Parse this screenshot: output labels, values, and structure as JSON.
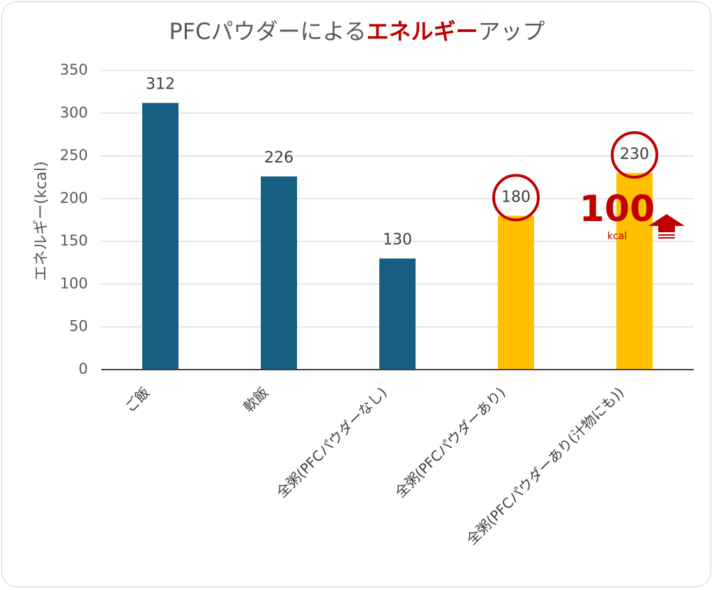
{
  "chart_data": {
    "type": "bar",
    "title_parts": [
      {
        "text": "PFCパウダーによる",
        "highlight": false
      },
      {
        "text": "エネルギー",
        "highlight": true
      },
      {
        "text": "アップ",
        "highlight": false
      }
    ],
    "ylabel": "エネルギー(kcal)",
    "ylim": [
      0,
      350
    ],
    "yticks": [
      0,
      50,
      100,
      150,
      200,
      250,
      300,
      350
    ],
    "grid": true,
    "categories": [
      "ご飯",
      "軟飯",
      "全粥(PFCパウダーなし)",
      "全粥(PFCパウダーあり)",
      "全粥(PFCパウダーあり(汁物にも))"
    ],
    "values": [
      312,
      226,
      130,
      180,
      230
    ],
    "bar_colors": [
      "#155f82",
      "#155f82",
      "#155f82",
      "#ffc000",
      "#ffc000"
    ],
    "highlighted_indices": [
      3,
      4
    ],
    "annotation": {
      "value": "100",
      "unit": "kcal",
      "icon": "up-arrow-icon",
      "color": "#c00000"
    }
  }
}
